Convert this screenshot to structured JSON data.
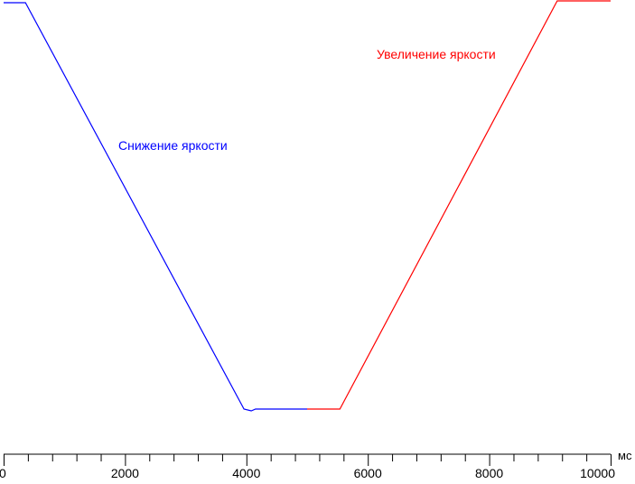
{
  "chart_data": {
    "type": "line",
    "title": "",
    "xlabel": "",
    "xunit": "мс",
    "ylabel": "",
    "xlim": [
      0,
      10000
    ],
    "ylim": [
      0,
      100
    ],
    "x_ticks": [
      0,
      2000,
      4000,
      6000,
      8000,
      10000
    ],
    "x_minor_tick_step": 400,
    "grid": false,
    "series": [
      {
        "name": "Снижение яркости",
        "color": "#0000ff",
        "points": [
          [
            0,
            100
          ],
          [
            360,
            100
          ],
          [
            3960,
            10
          ],
          [
            4080,
            9.6
          ],
          [
            4150,
            10
          ],
          [
            5000,
            10
          ]
        ]
      },
      {
        "name": "Увеличение яркости",
        "color": "#ff0000",
        "points": [
          [
            5000,
            10
          ],
          [
            5540,
            10
          ],
          [
            9120,
            100.4
          ],
          [
            10000,
            100.4
          ]
        ]
      }
    ]
  }
}
